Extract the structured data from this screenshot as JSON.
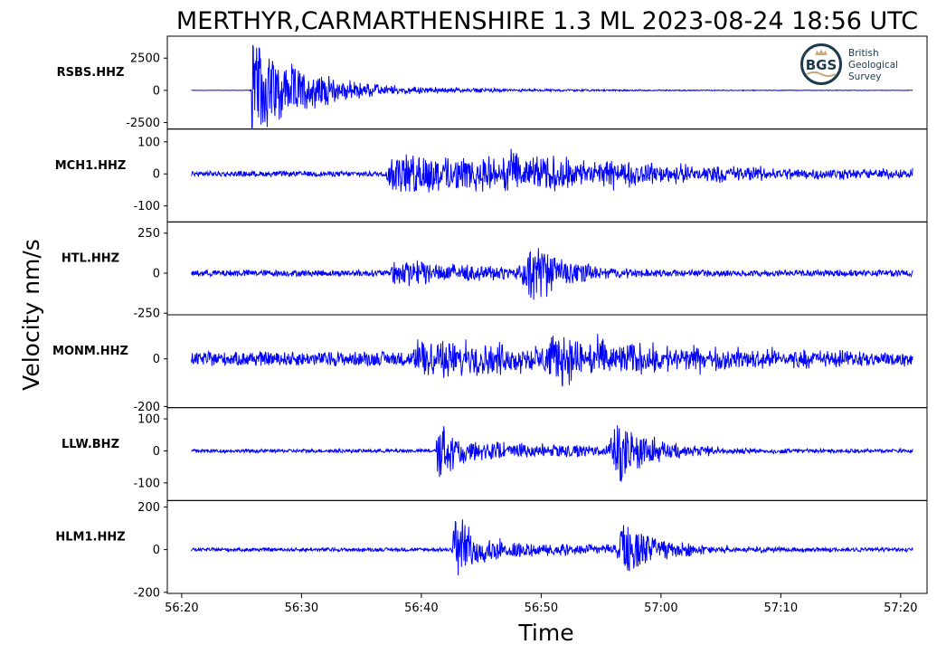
{
  "chart_data": {
    "type": "line",
    "title": "MERTHYR,CARMARTHENSHIRE 1.3 ML   2023-08-24 18:56 UTC",
    "xlabel": "Time",
    "ylabel": "Velocity nm/s",
    "x_ticks": [
      "56:20",
      "56:30",
      "56:40",
      "56:50",
      "57:00",
      "57:10",
      "57:20"
    ],
    "x_tick_seconds": [
      0,
      10,
      20,
      30,
      40,
      50,
      60
    ],
    "xlim_seconds": [
      -1.2,
      62.2
    ],
    "data_span_seconds": [
      0.8,
      61.0
    ],
    "grid": false,
    "line_color": "#0000ff",
    "logo": {
      "lines": [
        "British",
        "Geological",
        "Survey"
      ],
      "mark": "BGS",
      "color": "#1c3a4a",
      "accent": "#c8a87a"
    },
    "panels": [
      {
        "station": "RSBS.HHZ",
        "ylim": [
          -3000,
          4200
        ],
        "yticks": [
          2500,
          0,
          -2500
        ],
        "ytick_labels": [
          "2500",
          "0",
          "-2500"
        ],
        "noise": 12,
        "events": [
          {
            "t": 5.9,
            "amp": 3600,
            "decay": 4.5,
            "rise": 0.05,
            "neg": 2800
          },
          {
            "t": 6.2,
            "amp": 480,
            "decay": 14,
            "rise": 0.6
          }
        ]
      },
      {
        "station": "MCH1.HHZ",
        "ylim": [
          -150,
          140
        ],
        "yticks": [
          100,
          0,
          -100
        ],
        "ytick_labels": [
          "100",
          "0",
          "-100"
        ],
        "noise": 9,
        "events": [
          {
            "t": 17.4,
            "amp": 60,
            "decay": 22,
            "rise": 0.4
          },
          {
            "t": 27.0,
            "amp": 40,
            "decay": 14,
            "rise": 3.0
          }
        ]
      },
      {
        "station": "HTL.HHZ",
        "ylim": [
          -260,
          320
        ],
        "yticks": [
          250,
          0,
          -250
        ],
        "ytick_labels": [
          "250",
          "0",
          "-250"
        ],
        "noise": 22,
        "events": [
          {
            "t": 17.7,
            "amp": 85,
            "decay": 8,
            "rise": 0.4
          },
          {
            "t": 29.2,
            "amp": 190,
            "decay": 3.0,
            "rise": 1.2
          }
        ]
      },
      {
        "station": "MONM.HHZ",
        "ylim": [
          -205,
          185
        ],
        "yticks": [
          0,
          -200
        ],
        "ytick_labels": [
          "0",
          "-200"
        ],
        "noise": 32,
        "events": [
          {
            "t": 19.7,
            "amp": 75,
            "decay": 16,
            "rise": 0.6
          },
          {
            "t": 31.0,
            "amp": 75,
            "decay": 12,
            "rise": 1.5
          }
        ]
      },
      {
        "station": "LLW.BHZ",
        "ylim": [
          -155,
          135
        ],
        "yticks": [
          100,
          0,
          -100
        ],
        "ytick_labels": [
          "100",
          "0",
          "-100"
        ],
        "noise": 6,
        "events": [
          {
            "t": 21.4,
            "amp": 115,
            "decay": 1.0,
            "rise": 0.2
          },
          {
            "t": 21.8,
            "amp": 35,
            "decay": 14,
            "rise": 0.5
          },
          {
            "t": 36.3,
            "amp": 95,
            "decay": 3.0,
            "rise": 0.8
          }
        ]
      },
      {
        "station": "HLM1.HHZ",
        "ylim": [
          -205,
          230
        ],
        "yticks": [
          200,
          0,
          -200
        ],
        "ytick_labels": [
          "200",
          "0",
          "-200"
        ],
        "noise": 9,
        "events": [
          {
            "t": 22.8,
            "amp": 180,
            "decay": 1.5,
            "rise": 0.3
          },
          {
            "t": 23.2,
            "amp": 45,
            "decay": 14,
            "rise": 0.5
          },
          {
            "t": 36.8,
            "amp": 120,
            "decay": 3.5,
            "rise": 0.6
          }
        ]
      }
    ]
  }
}
